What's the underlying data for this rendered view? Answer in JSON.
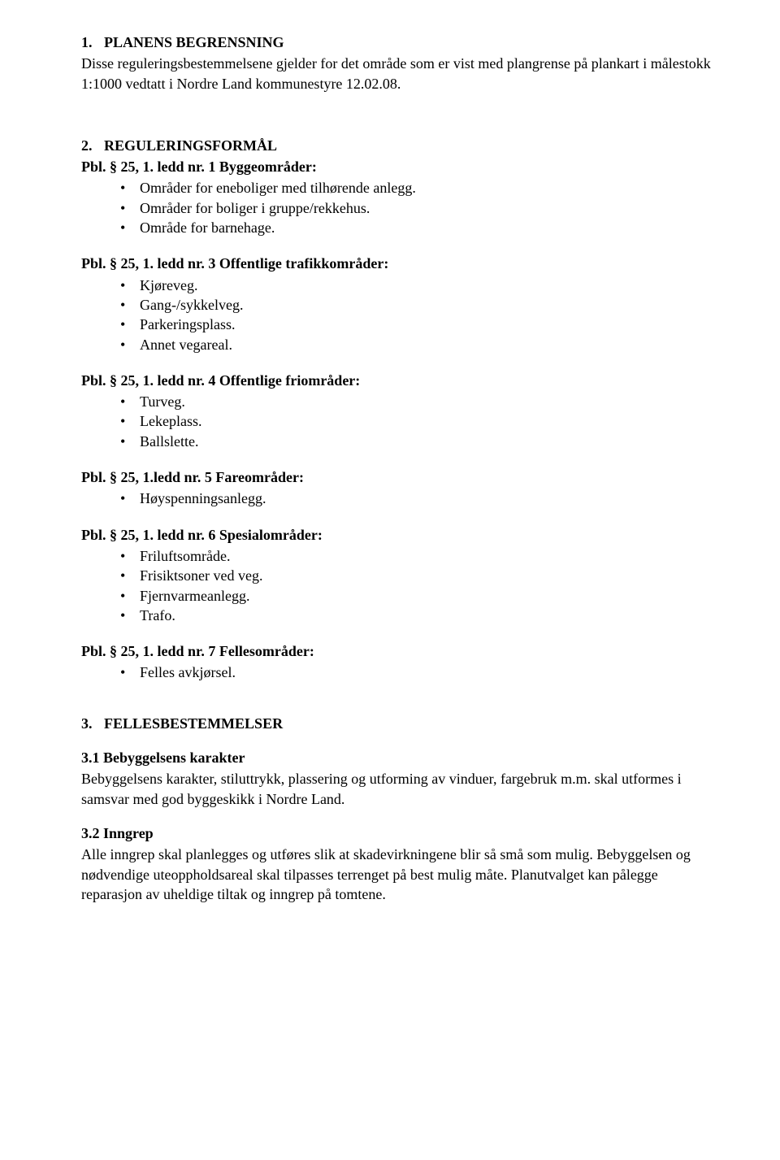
{
  "sec1": {
    "heading_num": "1.",
    "heading_text": "PLANENS BEGRENSNING",
    "intro": "Disse reguleringsbestemmelsene gjelder for det område som er vist med plangrense på plankart i målestokk 1:1000 vedtatt i Nordre Land kommunestyre 12.02.08."
  },
  "sec2": {
    "heading_num": "2.",
    "heading_text": "REGULERINGSFORMÅL",
    "groups": [
      {
        "title": "Pbl. § 25, 1. ledd nr. 1 Byggeområder:",
        "items": [
          "Områder for eneboliger med tilhørende anlegg.",
          "Områder for boliger i gruppe/rekkehus.",
          "Område for barnehage."
        ]
      },
      {
        "title": "Pbl. § 25, 1. ledd nr. 3 Offentlige trafikkområder:",
        "items": [
          "Kjøreveg.",
          "Gang-/sykkelveg.",
          "Parkeringsplass.",
          "Annet vegareal."
        ]
      },
      {
        "title": "Pbl. § 25, 1. ledd nr. 4 Offentlige friområder:",
        "items": [
          "Turveg.",
          "Lekeplass.",
          "Ballslette."
        ]
      },
      {
        "title": "Pbl. § 25, 1.ledd nr. 5 Fareområder:",
        "items": [
          "Høyspenningsanlegg."
        ]
      },
      {
        "title": "Pbl. § 25, 1. ledd nr. 6 Spesialområder:",
        "items": [
          "Friluftsområde.",
          "Frisiktsoner ved veg.",
          "Fjernvarmeanlegg.",
          "Trafo."
        ]
      },
      {
        "title": "Pbl. § 25, 1. ledd nr. 7 Fellesområder:",
        "items": [
          "Felles avkjørsel."
        ]
      }
    ]
  },
  "sec3": {
    "heading_num": "3.",
    "heading_text": "FELLESBESTEMMELSER",
    "subs": [
      {
        "title": "3.1 Bebyggelsens karakter",
        "body": "Bebyggelsens karakter, stiluttrykk, plassering og utforming av vinduer, fargebruk m.m. skal utformes i samsvar med god byggeskikk i Nordre Land."
      },
      {
        "title": "3.2 Inngrep",
        "body": "Alle inngrep skal planlegges og utføres slik at skadevirkningene blir så små som mulig. Bebyggelsen og nødvendige uteoppholdsareal skal tilpasses terrenget på best mulig måte. Planutvalget kan pålegge reparasjon av uheldige tiltak og inngrep på tomtene."
      }
    ]
  }
}
